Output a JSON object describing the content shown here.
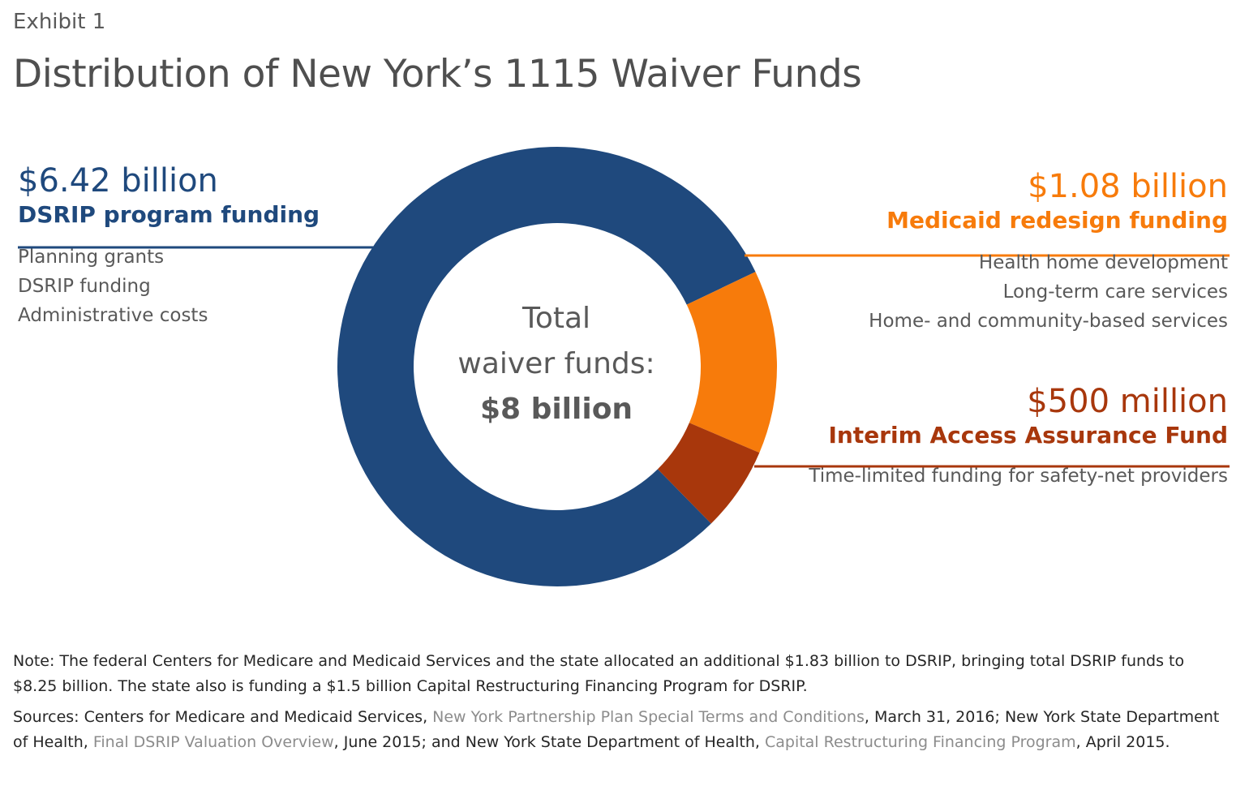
{
  "header": {
    "exhibit": "Exhibit 1",
    "title": "Distribution of New York’s 1115 Waiver Funds"
  },
  "chart_data": {
    "type": "pie",
    "variant": "donut",
    "center": {
      "line1": "Total",
      "line2": "waiver funds:",
      "line3": "$8 billion"
    },
    "total": 8,
    "unit": "billion",
    "slices": [
      {
        "id": "dsrip",
        "amount_label": "$6.42 billion",
        "label": "DSRIP program funding",
        "value": 6.42,
        "color": "#1f497d",
        "items": [
          "Planning grants",
          "DSRIP funding",
          "Administrative costs"
        ]
      },
      {
        "id": "medicaid",
        "amount_label": "$1.08 billion",
        "label": "Medicaid redesign funding",
        "value": 1.08,
        "color": "#f77b0b",
        "items": [
          "Health home development",
          "Long-term care services",
          "Home- and community-based services"
        ]
      },
      {
        "id": "iaaf",
        "amount_label": "$500 million",
        "label": "Interim Access Assurance Fund",
        "value": 0.5,
        "color": "#a8370c",
        "items": [
          "Time-limited funding for safety-net providers"
        ]
      }
    ]
  },
  "footer": {
    "note": "Note: The federal Centers for Medicare and Medicaid Services and the state allocated an additional $1.83 billion to DSRIP, bringing total DSRIP funds to $8.25 billion. The state also is funding a $1.5 billion Capital Restructuring Financing Program for DSRIP.",
    "sources": {
      "s1": "Sources: Centers for Medicare and Medicaid Services, ",
      "r1": "New York Partnership Plan Special Terms and Conditions",
      "s2": ", March 31, 2016; New York State Department of Health, ",
      "r2": "Final DSRIP Valuation Overview",
      "s3": ", June 2015; and New York State Department of Health, ",
      "r3": "Capital Restructuring Financing Program",
      "s4": ", April 2015."
    }
  }
}
